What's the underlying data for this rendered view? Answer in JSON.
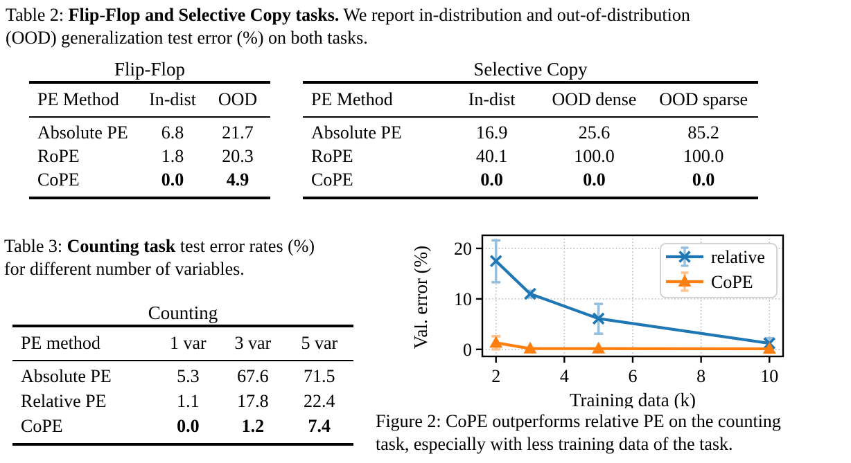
{
  "captions": {
    "table2": {
      "prefix": "Table 2:",
      "bold": "Flip-Flop and Selective Copy tasks.",
      "line1_rest": "We report in-distribution and out-of-distribution",
      "line2": "(OOD) generalization test error (%) on both tasks."
    },
    "table3": {
      "prefix": "Table 3:",
      "bold": "Counting task",
      "line1_rest": "test error rates (%)",
      "line2": "for different number of variables."
    },
    "figure2": {
      "prefix": "Figure 2:",
      "line1_rest": "CoPE outperforms relative PE on the counting",
      "line2": "task, especially with less training data of the task."
    }
  },
  "tables": {
    "flipflop": {
      "title": "Flip-Flop",
      "headers": [
        "PE Method",
        "In-dist",
        "OOD"
      ],
      "rows": [
        {
          "method": "Absolute PE",
          "values": [
            "6.8",
            "21.7"
          ]
        },
        {
          "method": "RoPE",
          "values": [
            "1.8",
            "20.3"
          ]
        },
        {
          "method": "CoPE",
          "values": [
            "0.0",
            "4.9"
          ]
        }
      ]
    },
    "selcopy": {
      "title": "Selective Copy",
      "headers": [
        "PE Method",
        "In-dist",
        "OOD dense",
        "OOD sparse"
      ],
      "rows": [
        {
          "method": "Absolute PE",
          "values": [
            "16.9",
            "25.6",
            "85.2"
          ]
        },
        {
          "method": "RoPE",
          "values": [
            "40.1",
            "100.0",
            "100.0"
          ]
        },
        {
          "method": "CoPE",
          "values": [
            "0.0",
            "0.0",
            "0.0"
          ]
        }
      ]
    },
    "counting": {
      "title": "Counting",
      "headers": [
        "PE method",
        "1 var",
        "3 var",
        "5 var"
      ],
      "rows": [
        {
          "method": "Absolute PE",
          "values": [
            "5.3",
            "67.6",
            "71.5"
          ]
        },
        {
          "method": "Relative PE",
          "values": [
            "1.1",
            "17.8",
            "22.4"
          ]
        },
        {
          "method": "CoPE",
          "values": [
            "0.0",
            "1.2",
            "7.4"
          ]
        }
      ]
    }
  },
  "chart_data": {
    "type": "line",
    "title": "",
    "xlabel": "Training data (k)",
    "ylabel": "Val. error (%)",
    "x": [
      2,
      3,
      5,
      10
    ],
    "xticks": [
      2,
      4,
      6,
      8,
      10
    ],
    "yticks": [
      0,
      10,
      20
    ],
    "xlim": [
      1.6,
      10.4
    ],
    "ylim": [
      -1.4,
      22.6
    ],
    "grid": true,
    "legend_position": "upper right",
    "series": [
      {
        "name": "relative",
        "marker": "x",
        "color": "#1f77b4",
        "light_color": "#96c0de",
        "values": [
          17.5,
          11.0,
          6.1,
          1.2
        ],
        "err_low": [
          13.3,
          10.3,
          3.1,
          0.3
        ],
        "err_high": [
          21.6,
          11.6,
          9.0,
          2.2
        ]
      },
      {
        "name": "CoPE",
        "marker": "triangle",
        "color": "#ff7f0e",
        "light_color": "#ffc18c",
        "values": [
          1.3,
          0.15,
          0.15,
          0.1
        ],
        "err_low": [
          0.0,
          0.15,
          0.15,
          0.1
        ],
        "err_high": [
          2.6,
          0.15,
          0.15,
          0.1
        ]
      }
    ]
  }
}
